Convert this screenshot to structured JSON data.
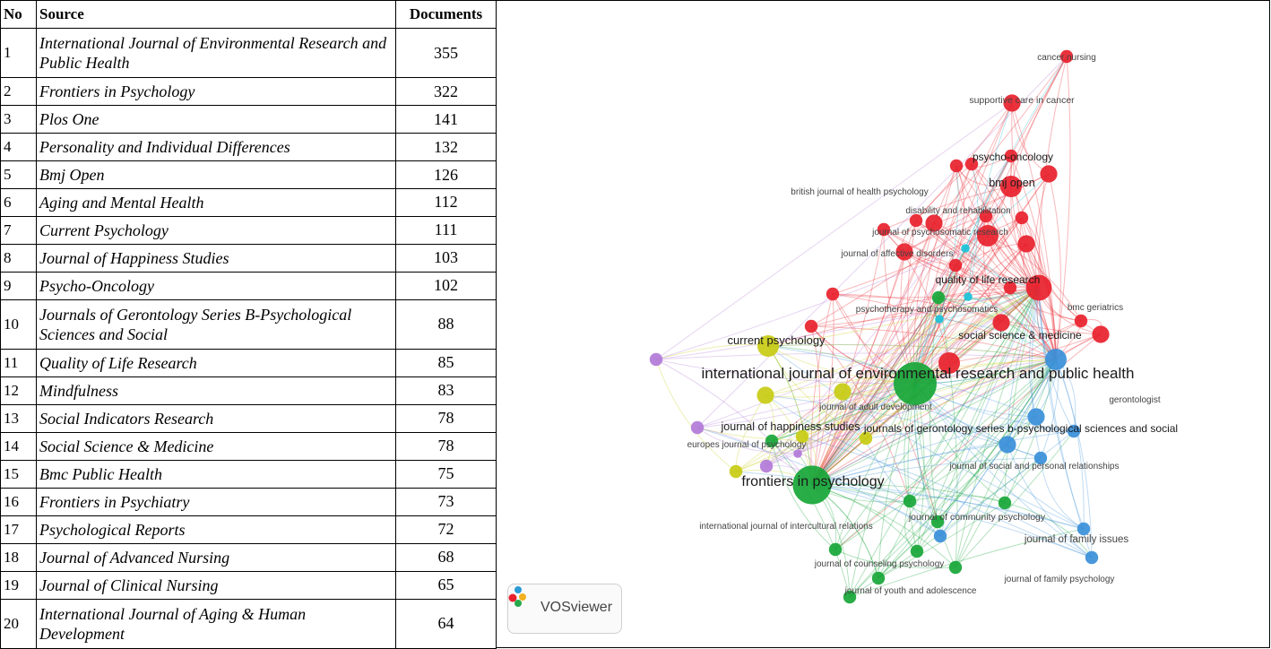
{
  "table": {
    "headers": {
      "no": "No",
      "source": "Source",
      "documents": "Documents"
    },
    "rows": [
      {
        "no": "1",
        "source": "International Journal of Environmental Research and Public Health",
        "documents": "355"
      },
      {
        "no": "2",
        "source": "Frontiers in Psychology",
        "documents": "322"
      },
      {
        "no": "3",
        "source": "Plos One",
        "documents": "141"
      },
      {
        "no": "4",
        "source": "Personality and Individual Differences",
        "documents": "132"
      },
      {
        "no": "5",
        "source": "Bmj Open",
        "documents": "126"
      },
      {
        "no": "6",
        "source": "Aging and Mental Health",
        "documents": "112"
      },
      {
        "no": "7",
        "source": "Current Psychology",
        "documents": "111"
      },
      {
        "no": "8",
        "source": "Journal of Happiness Studies",
        "documents": "103"
      },
      {
        "no": "9",
        "source": "Psycho-Oncology",
        "documents": "102"
      },
      {
        "no": "10",
        "source": "Journals of Gerontology Series B-Psychological Sciences and Social",
        "documents": "88"
      },
      {
        "no": "11",
        "source": "Quality of Life Research",
        "documents": "85"
      },
      {
        "no": "12",
        "source": "Mindfulness",
        "documents": "83"
      },
      {
        "no": "13",
        "source": "Social Indicators Research",
        "documents": "78"
      },
      {
        "no": "14",
        "source": "Social Science & Medicine",
        "documents": "78"
      },
      {
        "no": "15",
        "source": "Bmc Public Health",
        "documents": "75"
      },
      {
        "no": "16",
        "source": "Frontiers in Psychiatry",
        "documents": "73"
      },
      {
        "no": "17",
        "source": "Psychological Reports",
        "documents": "72"
      },
      {
        "no": "18",
        "source": "Journal of Advanced Nursing",
        "documents": "68"
      },
      {
        "no": "19",
        "source": "Journal of Clinical Nursing",
        "documents": "65"
      },
      {
        "no": "20",
        "source": "International Journal of Aging & Human Development",
        "documents": "64"
      }
    ]
  },
  "network": {
    "tool_label": "VOSviewer",
    "cluster_colors": {
      "red": "#e8212d",
      "green": "#17a637",
      "blue": "#3a8fd9",
      "yellow": "#c8cc14",
      "purple": "#b27ad8",
      "cyan": "#1cc2d8"
    },
    "labels": [
      {
        "text": "cancer nursing",
        "color": "red"
      },
      {
        "text": "supportive care in cancer",
        "color": "red"
      },
      {
        "text": "psycho-oncology",
        "color": "red"
      },
      {
        "text": "bmj open",
        "color": "red"
      },
      {
        "text": "british journal of health psychology",
        "color": "red"
      },
      {
        "text": "disability and rehabilitation",
        "color": "red"
      },
      {
        "text": "journal of psychosomatic research",
        "color": "red"
      },
      {
        "text": "journal of affective disorders",
        "color": "red"
      },
      {
        "text": "quality of life research",
        "color": "red"
      },
      {
        "text": "psychotherapy and psychosomatics",
        "color": "red"
      },
      {
        "text": "bmc geriatrics",
        "color": "red"
      },
      {
        "text": "social science & medicine",
        "color": "red"
      },
      {
        "text": "current psychology",
        "color": "yellow"
      },
      {
        "text": "international journal of environmental research and public health",
        "color": "green"
      },
      {
        "text": "gerontologist",
        "color": "blue"
      },
      {
        "text": "journal of adult development",
        "color": "yellow"
      },
      {
        "text": "journal of happiness studies",
        "color": "yellow"
      },
      {
        "text": "journals of gerontology series b-psychological sciences and social",
        "color": "blue"
      },
      {
        "text": "europes journal of psychology",
        "color": "purple"
      },
      {
        "text": "journal of social and personal relationships",
        "color": "blue"
      },
      {
        "text": "frontiers in psychology",
        "color": "green"
      },
      {
        "text": "journal of community psychology",
        "color": "green"
      },
      {
        "text": "international journal of intercultural relations",
        "color": "green"
      },
      {
        "text": "journal of family issues",
        "color": "blue"
      },
      {
        "text": "journal of counseling psychology",
        "color": "green"
      },
      {
        "text": "journal of family psychology",
        "color": "blue"
      },
      {
        "text": "journal of youth and adolescence",
        "color": "green"
      }
    ],
    "nodes": [
      {
        "cluster": "red",
        "weight": 3
      },
      {
        "cluster": "red",
        "weight": 4
      },
      {
        "cluster": "red",
        "weight": 3
      },
      {
        "cluster": "red",
        "weight": 5
      },
      {
        "cluster": "red",
        "weight": 4
      },
      {
        "cluster": "red",
        "weight": 3
      },
      {
        "cluster": "red",
        "weight": 3
      },
      {
        "cluster": "red",
        "weight": 4
      },
      {
        "cluster": "red",
        "weight": 3
      },
      {
        "cluster": "red",
        "weight": 5
      },
      {
        "cluster": "red",
        "weight": 3
      },
      {
        "cluster": "red",
        "weight": 4
      },
      {
        "cluster": "red",
        "weight": 6
      },
      {
        "cluster": "red",
        "weight": 3
      },
      {
        "cluster": "red",
        "weight": 3
      },
      {
        "cluster": "red",
        "weight": 4
      },
      {
        "cluster": "red",
        "weight": 3
      },
      {
        "cluster": "red",
        "weight": 5
      },
      {
        "cluster": "red",
        "weight": 3
      },
      {
        "cluster": "red",
        "weight": 3
      },
      {
        "cluster": "red",
        "weight": 4
      },
      {
        "cluster": "red",
        "weight": 3
      },
      {
        "cluster": "red",
        "weight": 3
      },
      {
        "cluster": "red",
        "weight": 4
      },
      {
        "cluster": "green",
        "weight": 10
      },
      {
        "cluster": "green",
        "weight": 9
      },
      {
        "cluster": "green",
        "weight": 3
      },
      {
        "cluster": "green",
        "weight": 3
      },
      {
        "cluster": "green",
        "weight": 3
      },
      {
        "cluster": "green",
        "weight": 3
      },
      {
        "cluster": "green",
        "weight": 3
      },
      {
        "cluster": "green",
        "weight": 3
      },
      {
        "cluster": "green",
        "weight": 3
      },
      {
        "cluster": "green",
        "weight": 3
      },
      {
        "cluster": "green",
        "weight": 3
      },
      {
        "cluster": "green",
        "weight": 3
      },
      {
        "cluster": "blue",
        "weight": 5
      },
      {
        "cluster": "blue",
        "weight": 4
      },
      {
        "cluster": "blue",
        "weight": 3
      },
      {
        "cluster": "blue",
        "weight": 4
      },
      {
        "cluster": "blue",
        "weight": 3
      },
      {
        "cluster": "blue",
        "weight": 3
      },
      {
        "cluster": "blue",
        "weight": 3
      },
      {
        "cluster": "blue",
        "weight": 3
      },
      {
        "cluster": "yellow",
        "weight": 5
      },
      {
        "cluster": "yellow",
        "weight": 4
      },
      {
        "cluster": "yellow",
        "weight": 4
      },
      {
        "cluster": "yellow",
        "weight": 3
      },
      {
        "cluster": "yellow",
        "weight": 3
      },
      {
        "cluster": "yellow",
        "weight": 3
      },
      {
        "cluster": "purple",
        "weight": 3
      },
      {
        "cluster": "purple",
        "weight": 3
      },
      {
        "cluster": "purple",
        "weight": 3
      },
      {
        "cluster": "purple",
        "weight": 2
      },
      {
        "cluster": "cyan",
        "weight": 2
      },
      {
        "cluster": "cyan",
        "weight": 2
      },
      {
        "cluster": "cyan",
        "weight": 2
      }
    ]
  }
}
